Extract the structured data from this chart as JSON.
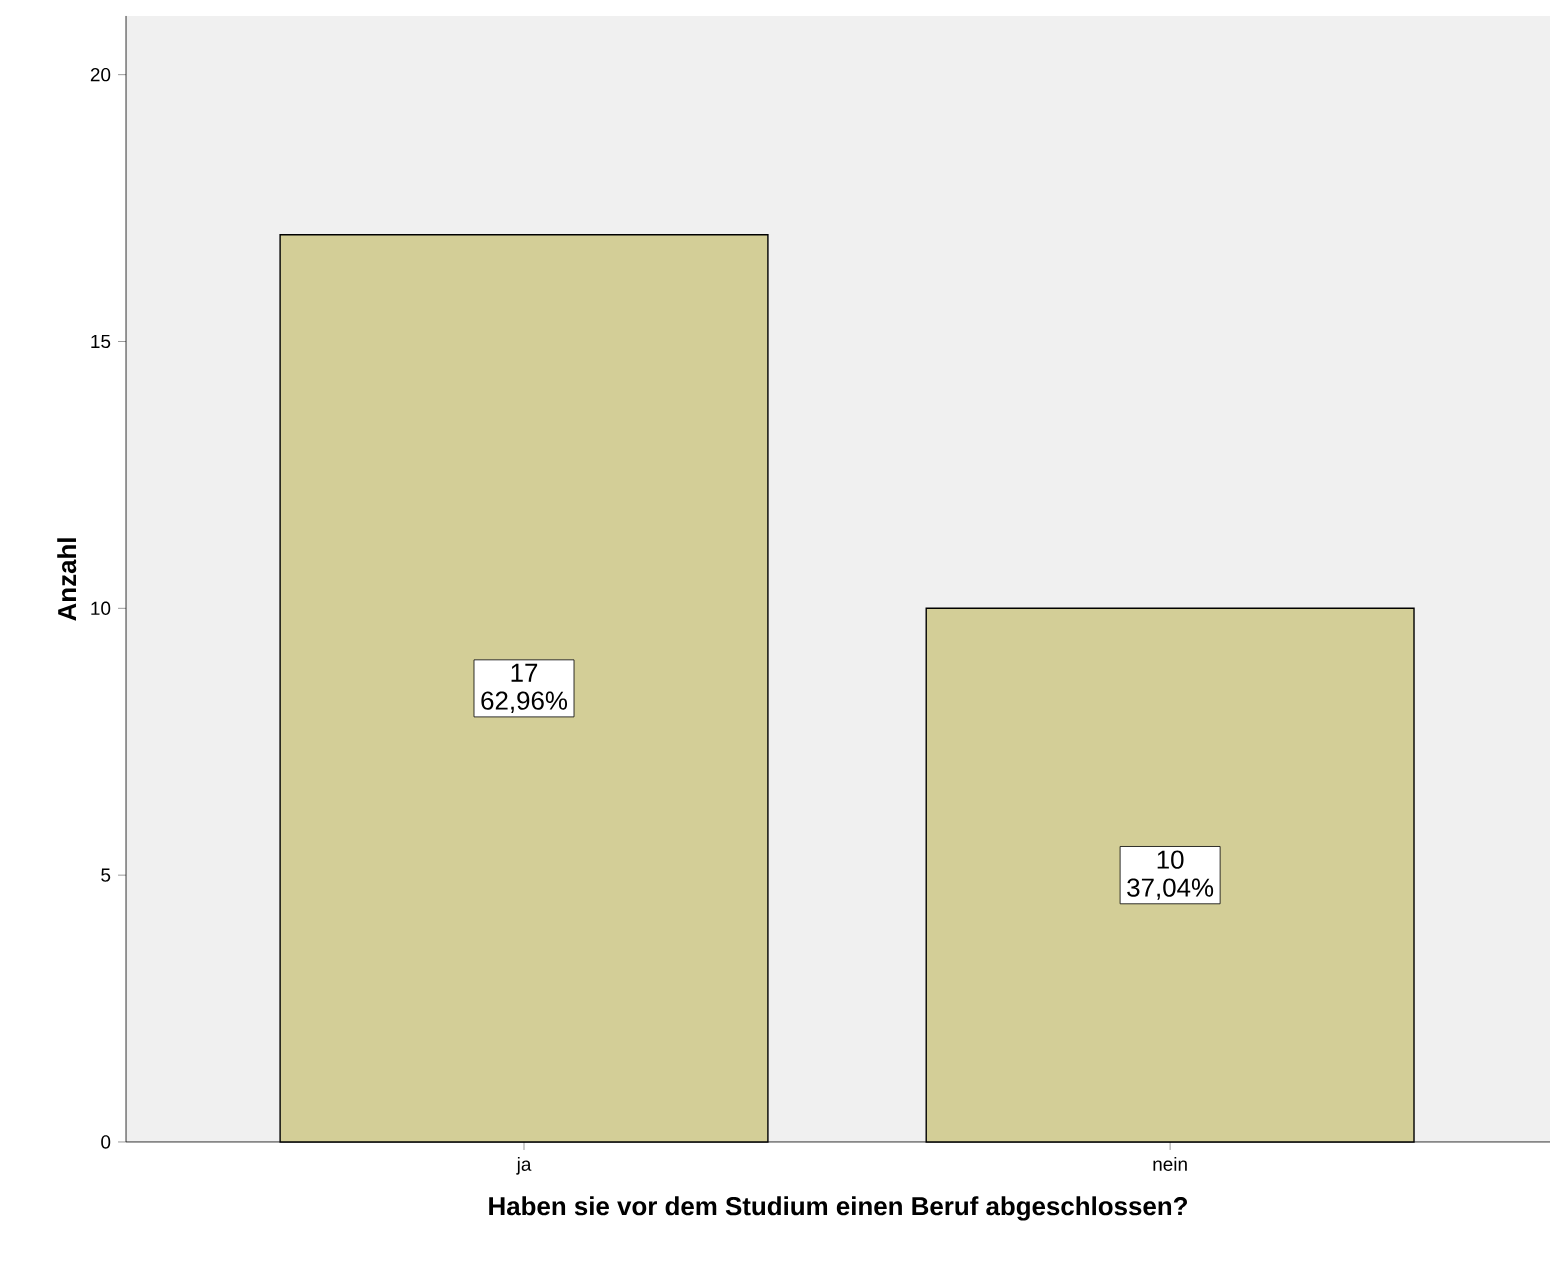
{
  "chart_data": {
    "type": "bar",
    "xlabel": "Haben sie vor dem Studium einen Beruf abgeschlossen?",
    "ylabel": "Anzahl",
    "categories": [
      "ja",
      "nein"
    ],
    "values": [
      17,
      10
    ],
    "value_labels": [
      "17 62,96%",
      "10 37,04%"
    ],
    "color": "#d3ce97",
    "ylim": [
      0,
      21.1
    ],
    "yticks": [
      0,
      5,
      10,
      15,
      20
    ]
  }
}
